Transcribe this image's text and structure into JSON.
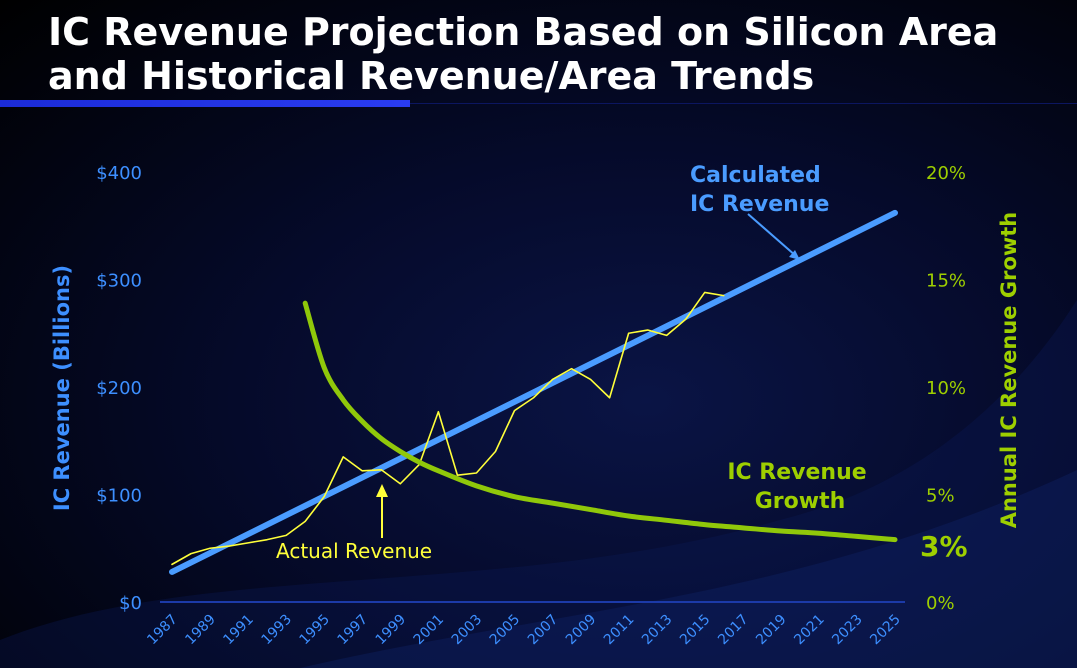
{
  "title_line1": "IC Revenue Projection Based on Silicon Area",
  "title_line2": "and Historical Revenue/Area Trends",
  "colors": {
    "revenue_axis": "#3d8fff",
    "growth_axis": "#9ecf00",
    "calculated_line": "#4a9cff",
    "actual_line": "#ffff3a",
    "growth_line": "#90c80a",
    "actual_label": "#ffff3a"
  },
  "chart_data": {
    "type": "line",
    "x_tick_labels": [
      "1987",
      "1989",
      "1991",
      "1993",
      "1995",
      "1997",
      "1999",
      "2001",
      "2003",
      "2005",
      "2007",
      "2009",
      "2011",
      "2013",
      "2015",
      "2017",
      "2019",
      "2021",
      "2023",
      "2025"
    ],
    "xlim": [
      1987,
      2025
    ],
    "left_axis": {
      "label": "IC Revenue (Billions)",
      "ylim": [
        0,
        400
      ],
      "tick_labels": [
        "$0",
        "$100",
        "$200",
        "$300",
        "$400"
      ],
      "tick_values": [
        0,
        100,
        200,
        300,
        400
      ]
    },
    "right_axis": {
      "label": "Annual IC Revenue Growth",
      "ylim": [
        0,
        20
      ],
      "tick_labels": [
        "0%",
        "5%",
        "10%",
        "15%",
        "20%"
      ],
      "tick_values": [
        0,
        5,
        10,
        15,
        20
      ]
    },
    "series": [
      {
        "id": "calculated",
        "axis": "left",
        "x": [
          1987,
          2025
        ],
        "y": [
          28,
          362
        ]
      },
      {
        "id": "actual",
        "axis": "left",
        "x": [
          1987,
          1988,
          1989,
          1990,
          1991,
          1992,
          1993,
          1994,
          1995,
          1996,
          1997,
          1998,
          1999,
          2000,
          2001,
          2002,
          2003,
          2004,
          2005,
          2006,
          2007,
          2008,
          2009,
          2010,
          2011,
          2012,
          2013,
          2014,
          2015,
          2016
        ],
        "y": [
          35,
          45,
          50,
          52,
          55,
          58,
          62,
          75,
          98,
          135,
          122,
          123,
          110,
          128,
          177,
          118,
          120,
          140,
          178,
          190,
          207,
          217,
          207,
          190,
          250,
          253,
          248,
          263,
          288,
          285
        ]
      },
      {
        "id": "growth",
        "axis": "right",
        "x": [
          1994,
          1995,
          1996,
          1997,
          1998,
          1999,
          2000,
          2001,
          2003,
          2005,
          2007,
          2009,
          2011,
          2013,
          2015,
          2017,
          2019,
          2021,
          2023,
          2025
        ],
        "y": [
          13.9,
          10.9,
          9.4,
          8.4,
          7.6,
          7.0,
          6.5,
          6.1,
          5.4,
          4.9,
          4.6,
          4.3,
          4.0,
          3.8,
          3.6,
          3.45,
          3.3,
          3.2,
          3.05,
          2.9
        ]
      }
    ],
    "annotations": {
      "calculated_label_line1": "Calculated",
      "calculated_label_line2": "IC Revenue",
      "actual_label": "Actual Revenue",
      "growth_label_line1": "IC Revenue",
      "growth_label_line2": "Growth",
      "growth_end_value": "3%"
    }
  }
}
